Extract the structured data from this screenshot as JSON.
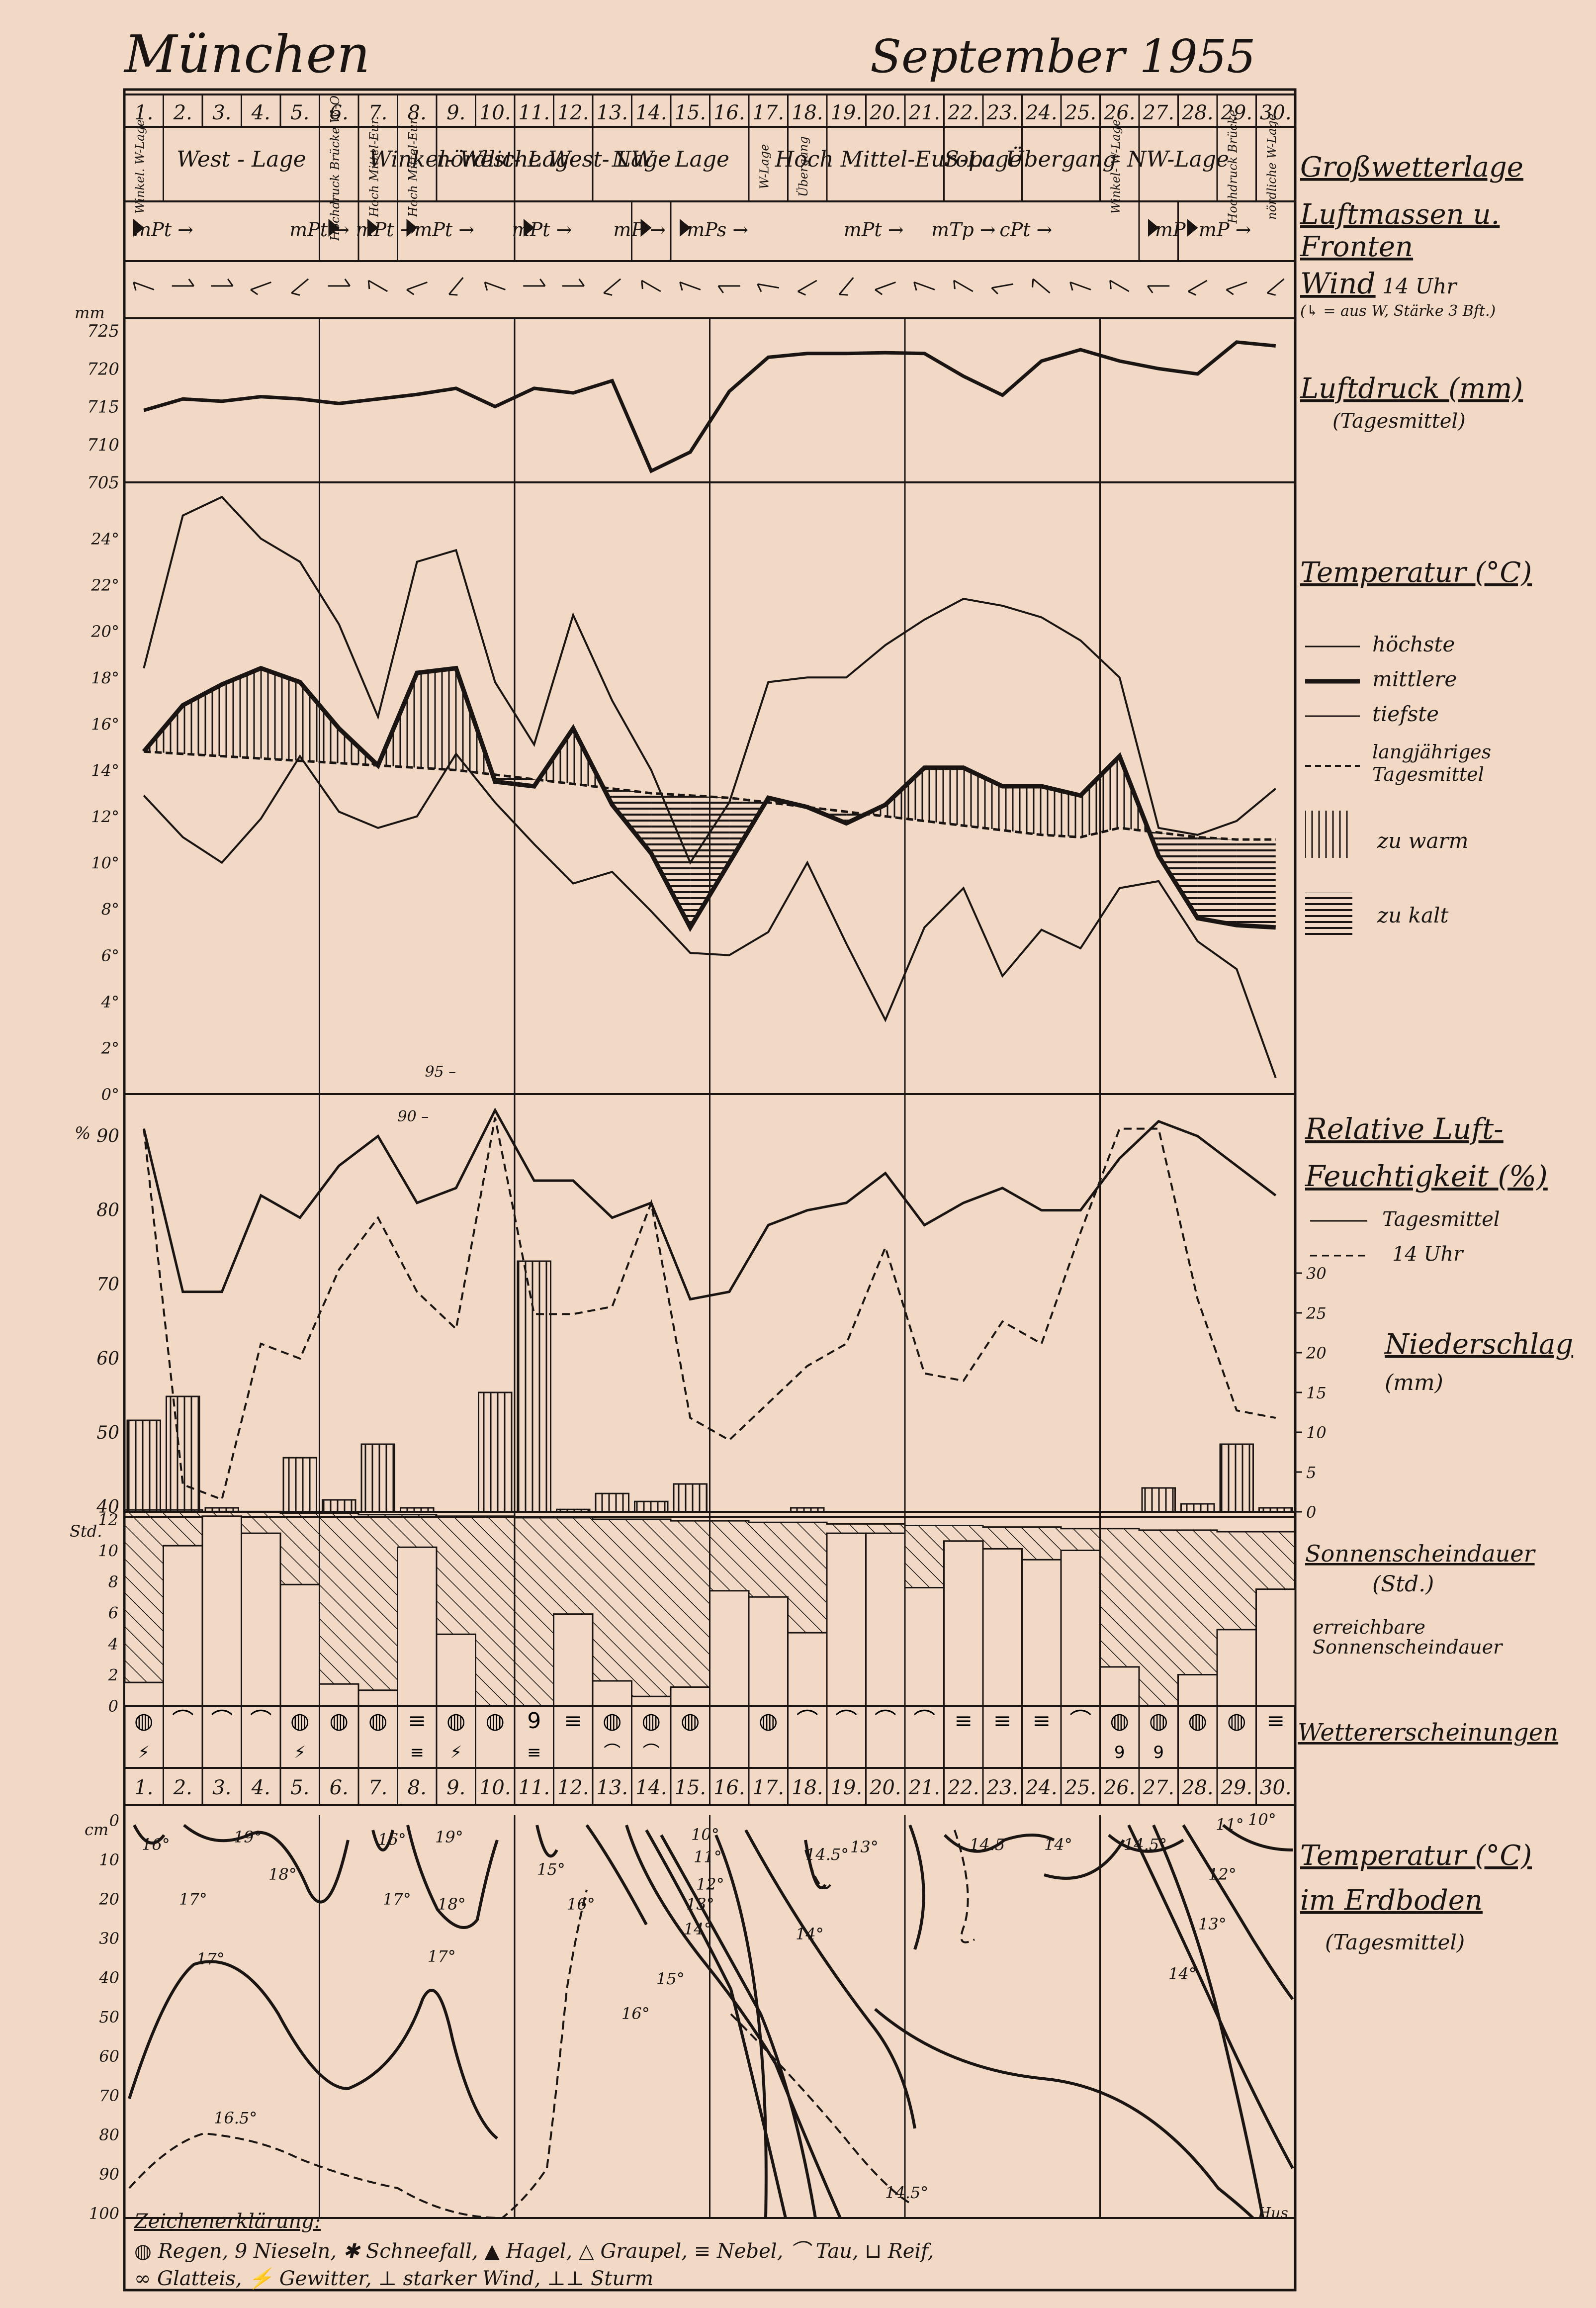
{
  "header": {
    "place": "München",
    "period": "September 1955"
  },
  "days": [
    "1",
    "2",
    "3",
    "4",
    "5",
    "6",
    "7",
    "8",
    "9",
    "10",
    "11",
    "12",
    "13",
    "14",
    "15",
    "16",
    "17",
    "18",
    "19",
    "20",
    "21",
    "22",
    "23",
    "24",
    "25",
    "26",
    "27",
    "28",
    "29",
    "30"
  ],
  "weather_types": [
    {
      "from": 1,
      "to": 1,
      "label": "Winkel. W-Lage"
    },
    {
      "from": 2,
      "to": 5,
      "label": "West - Lage"
    },
    {
      "from": 6,
      "to": 6,
      "label": "Hochdruck Brücke W.-O."
    },
    {
      "from": 7,
      "to": 7,
      "label": "Hoch Mittel-Eur."
    },
    {
      "from": 8,
      "to": 8,
      "label": "Hoch Mittel-Eur."
    },
    {
      "from": 9,
      "to": 10,
      "label": "Winkel- West- Lage"
    },
    {
      "from": 11,
      "to": 12,
      "label": "nördliche West- Lage"
    },
    {
      "from": 13,
      "to": 16,
      "label": "NW - Lage"
    },
    {
      "from": 17,
      "to": 17,
      "label": "W-Lage"
    },
    {
      "from": 18,
      "to": 18,
      "label": "Übergang"
    },
    {
      "from": 19,
      "to": 21,
      "label": "Hoch Mittel-Europa"
    },
    {
      "from": 22,
      "to": 23,
      "label": "S-Lage"
    },
    {
      "from": 24,
      "to": 25,
      "label": "Übergang"
    },
    {
      "from": 26,
      "to": 26,
      "label": "Winkel- W-Lage"
    },
    {
      "from": 27,
      "to": 28,
      "label": "NW-Lage"
    },
    {
      "from": 29,
      "to": 29,
      "label": "Hochdruck Brücke"
    },
    {
      "from": 30,
      "to": 30,
      "label": "nördliche W-Lage"
    }
  ],
  "airmasses": [
    {
      "day": 1.5,
      "label": "mPt →"
    },
    {
      "day": 5.5,
      "label": "mPt →"
    },
    {
      "day": 7.2,
      "label": "mPt →"
    },
    {
      "day": 8.7,
      "label": "mPt →"
    },
    {
      "day": 11.2,
      "label": "mPt →"
    },
    {
      "day": 13.7,
      "label": "mP →"
    },
    {
      "day": 15.7,
      "label": "mPs →"
    },
    {
      "day": 19.7,
      "label": "mPt →"
    },
    {
      "day": 22.0,
      "label": "mTp →"
    },
    {
      "day": 23.6,
      "label": "cPt →"
    },
    {
      "day": 27.3,
      "label": "mP"
    },
    {
      "day": 28.7,
      "label": "mP →"
    }
  ],
  "wind_days": [
    1,
    2,
    3,
    4,
    5,
    6,
    7,
    8,
    9,
    10,
    11,
    12,
    13,
    14,
    15,
    16,
    17,
    18,
    19,
    20,
    21,
    22,
    23,
    24,
    25,
    26,
    27,
    28,
    29,
    30
  ],
  "labels": {
    "grosswetter": "Großwetterlage",
    "luftmassen": "Luftmassen u.",
    "fronten": "Fronten",
    "wind": "Wind",
    "wind_time": "14 Uhr",
    "wind_note": "(↳ = aus W, Stärke 3 Bft.)",
    "luftdruck": "Luftdruck (mm)",
    "luftdruck_sub": "(Tagesmittel)",
    "temperatur": "Temperatur (°C)",
    "t_max": "höchste",
    "t_mean": "mittlere",
    "t_min": "tiefste",
    "t_norm1": "langjähriges",
    "t_norm2": "Tagesmittel",
    "zu_warm": "zu warm",
    "zu_kalt": "zu kalt",
    "feuchte1": "Relative Luft-",
    "feuchte2": "Feuchtigkeit (%)",
    "feuchte_mean": "Tagesmittel",
    "feuchte_14": "14 Uhr",
    "niederschlag": "Niederschlag",
    "niederschlag_unit": "(mm)",
    "sonne1": "Sonnenscheindauer",
    "sonne2": "(Std.)",
    "sonne3": "erreichbare",
    "sonne4": "Sonnenscheindauer",
    "wettererscheinungen": "Wettererscheinungen",
    "boden1": "Temperatur (°C)",
    "boden2": "im Erdboden",
    "boden3": "(Tagesmittel)",
    "unit_mm": "mm",
    "unit_pct": "%",
    "unit_std": "Std.",
    "unit_cm": "cm",
    "rh_95": "95 –",
    "rh_90": "90 –",
    "legend_title": "Zeichenerklärung:",
    "legend_line1": "◍ Regen, 9 Nieseln, ✱ Schneefall, ▲ Hagel, △ Graupel, ≡ Nebel, ⌒ Tau, ⊔ Reif,",
    "legend_line2": "∞ Glatteis, ⚡ Gewitter, ⊥ starker Wind, ⊥⊥ Sturm",
    "signature": "Hus"
  },
  "colors": {
    "paper": "#f2d9c6",
    "ink": "#1a1512"
  },
  "weather_symbols": [
    "◍",
    "⌒",
    "⌒",
    "⌒",
    "◍",
    "◍",
    "◍",
    "≡",
    "◍",
    "◍",
    "9",
    "≡",
    "◍",
    "◍",
    "◍",
    "",
    "◍",
    "⌒",
    "⌒",
    "⌒",
    "⌒",
    "≡",
    "≡",
    "≡",
    "⌒",
    "◍",
    "◍",
    "◍",
    "◍",
    "≡"
  ],
  "weather_symbols2": [
    "⚡",
    "",
    "",
    "",
    "⚡",
    "",
    "",
    "≡",
    "⚡",
    "",
    "≡",
    "",
    "⌒",
    "⌒",
    "",
    "",
    "",
    "",
    "",
    "",
    "",
    "",
    "",
    "",
    "",
    "9",
    "9",
    "",
    "",
    ""
  ],
  "soil_isotherm_labels": [
    "16°",
    "19°",
    "16°",
    "19°",
    "17°",
    "18°",
    "17°",
    "18°",
    "15°",
    "16°",
    "17°",
    "17°",
    "16.5°",
    "10°",
    "11°",
    "12°",
    "13°",
    "14°",
    "15°",
    "16°",
    "14.5°",
    "13°",
    "14°",
    "14.5",
    "14°",
    "14.5°",
    "11°",
    "12°",
    "13°",
    "14°",
    "10°",
    "14.5°"
  ],
  "chart_data": [
    {
      "type": "line",
      "title": "Luftdruck (mm)",
      "subtitle": "(Tagesmittel)",
      "ylabel": "mm",
      "x": [
        1,
        2,
        3,
        4,
        5,
        6,
        7,
        8,
        9,
        10,
        11,
        12,
        13,
        14,
        15,
        16,
        17,
        18,
        19,
        20,
        21,
        22,
        23,
        24,
        25,
        26,
        27,
        28,
        29,
        30
      ],
      "ylim": [
        705,
        725
      ],
      "yticks": [
        705,
        710,
        715,
        720,
        725
      ],
      "series": [
        {
          "name": "Tagesmittel",
          "values": [
            714.5,
            716,
            715.7,
            716.3,
            716,
            715.4,
            716,
            716.6,
            717.4,
            715,
            717.4,
            716.8,
            718.4,
            706.5,
            709,
            717,
            721.5,
            722,
            722,
            722.1,
            722,
            719,
            716.5,
            721,
            722.5,
            721,
            720,
            719.3,
            723.5,
            723
          ]
        }
      ]
    },
    {
      "type": "line",
      "title": "Temperatur (°C)",
      "ylabel": "",
      "x": [
        1,
        2,
        3,
        4,
        5,
        6,
        7,
        8,
        9,
        10,
        11,
        12,
        13,
        14,
        15,
        16,
        17,
        18,
        19,
        20,
        21,
        22,
        23,
        24,
        25,
        26,
        27,
        28,
        29,
        30
      ],
      "ylim": [
        0,
        26
      ],
      "yticks": [
        0,
        2,
        4,
        6,
        8,
        10,
        12,
        14,
        16,
        18,
        20,
        22,
        24
      ],
      "series": [
        {
          "name": "höchste",
          "values": [
            18.4,
            25,
            25.8,
            24,
            23,
            20.3,
            16.3,
            23,
            23.5,
            17.8,
            15.1,
            20.7,
            17,
            14,
            10,
            12.6,
            17.8,
            18,
            18,
            19.4,
            20.5,
            21.4,
            21.1,
            20.6,
            19.6,
            18,
            11.5,
            11.2,
            11.8,
            13.2
          ]
        },
        {
          "name": "mittlere",
          "values": [
            14.8,
            16.8,
            17.7,
            18.4,
            17.8,
            15.8,
            14.2,
            18.2,
            18.4,
            13.5,
            13.3,
            15.8,
            12.5,
            10.4,
            7.2,
            10,
            12.8,
            12.4,
            11.7,
            12.5,
            14.1,
            14.1,
            13.3,
            13.3,
            12.9,
            14.6,
            10.3,
            7.6,
            7.3,
            7.2
          ]
        },
        {
          "name": "tiefste",
          "values": [
            12.9,
            11.1,
            10,
            11.9,
            14.6,
            12.2,
            11.5,
            12,
            14.7,
            12.6,
            10.8,
            9.1,
            9.6,
            7.9,
            6.1,
            6,
            7,
            10,
            6.5,
            3.2,
            7.2,
            8.9,
            5.1,
            7.1,
            6.3,
            8.9,
            9.2,
            6.6,
            5.4,
            0.7
          ]
        },
        {
          "name": "langjähriges Tagesmittel",
          "values": [
            14.8,
            14.7,
            14.6,
            14.5,
            14.4,
            14.3,
            14.2,
            14.1,
            14,
            13.8,
            13.6,
            13.4,
            13.2,
            13,
            12.9,
            12.8,
            12.6,
            12.4,
            12.2,
            12,
            11.8,
            11.6,
            11.4,
            11.2,
            11.1,
            11.5,
            11.3,
            11.1,
            11,
            11
          ]
        }
      ]
    },
    {
      "type": "line",
      "title": "Relative Luftfeuchtigkeit (%)",
      "ylabel": "%",
      "x": [
        1,
        2,
        3,
        4,
        5,
        6,
        7,
        8,
        9,
        10,
        11,
        12,
        13,
        14,
        15,
        16,
        17,
        18,
        19,
        20,
        21,
        22,
        23,
        24,
        25,
        26,
        27,
        28,
        29,
        30
      ],
      "ylim": [
        40,
        95
      ],
      "yticks": [
        40,
        50,
        60,
        70,
        80,
        90
      ],
      "series": [
        {
          "name": "Tagesmittel",
          "values": [
            91,
            69,
            69,
            82,
            79,
            86,
            90,
            81,
            83,
            93.5,
            84,
            84,
            79,
            81,
            68,
            69,
            78,
            80,
            81,
            85,
            78,
            81,
            83,
            80,
            80,
            87,
            92,
            90,
            86,
            82
          ]
        },
        {
          "name": "14 Uhr",
          "values": [
            91,
            43,
            41,
            62,
            60,
            72,
            79,
            69,
            64,
            92.5,
            66,
            66,
            67,
            81,
            52,
            49,
            54,
            59,
            62,
            75,
            58,
            57,
            65,
            62,
            77,
            91,
            91,
            68,
            53,
            52
          ]
        }
      ]
    },
    {
      "type": "bar",
      "title": "Niederschlag (mm)",
      "ylabel": "mm",
      "categories": [
        "1",
        "2",
        "3",
        "4",
        "5",
        "6",
        "7",
        "8",
        "9",
        "10",
        "11",
        "12",
        "13",
        "14",
        "15",
        "16",
        "17",
        "18",
        "19",
        "20",
        "21",
        "22",
        "23",
        "24",
        "25",
        "26",
        "27",
        "28",
        "29",
        "30"
      ],
      "ylim": [
        0,
        30
      ],
      "yticks": [
        0,
        5,
        10,
        15,
        20,
        25,
        30
      ],
      "values": [
        11.5,
        14.5,
        0.5,
        0,
        6.8,
        1.5,
        8.5,
        0.5,
        0,
        15,
        31.5,
        0.3,
        2.3,
        1.3,
        3.5,
        0,
        0,
        0.5,
        0,
        0,
        0,
        0,
        0,
        0,
        0,
        0,
        3,
        1,
        8.5,
        0.5
      ]
    },
    {
      "type": "bar",
      "title": "Sonnenscheindauer (Std.)",
      "ylabel": "Std.",
      "categories": [
        "1",
        "2",
        "3",
        "4",
        "5",
        "6",
        "7",
        "8",
        "9",
        "10",
        "11",
        "12",
        "13",
        "14",
        "15",
        "16",
        "17",
        "18",
        "19",
        "20",
        "21",
        "22",
        "23",
        "24",
        "25",
        "26",
        "27",
        "28",
        "29",
        "30"
      ],
      "ylim": [
        0,
        12
      ],
      "yticks": [
        0,
        2,
        4,
        6,
        8,
        10,
        12
      ],
      "series": [
        {
          "name": "Sonnenscheindauer",
          "values": [
            1.5,
            10.3,
            12.2,
            11.1,
            7.8,
            1.4,
            1,
            10.2,
            4.6,
            0,
            0,
            5.9,
            1.6,
            0.6,
            1.2,
            7.4,
            7,
            4.7,
            11.1,
            11.1,
            7.6,
            10.6,
            10.1,
            9.4,
            10,
            2.5,
            0,
            2,
            4.9,
            7.5
          ]
        },
        {
          "name": "erreichbare Sonnenscheindauer",
          "values": [
            12.6,
            12.6,
            12.5,
            12.5,
            12.4,
            12.4,
            12.3,
            12.3,
            12.2,
            12.2,
            12.1,
            12.1,
            12,
            12,
            11.9,
            11.9,
            11.8,
            11.8,
            11.7,
            11.7,
            11.6,
            11.6,
            11.5,
            11.5,
            11.4,
            11.4,
            11.3,
            11.3,
            11.2,
            11.2
          ]
        }
      ]
    }
  ]
}
